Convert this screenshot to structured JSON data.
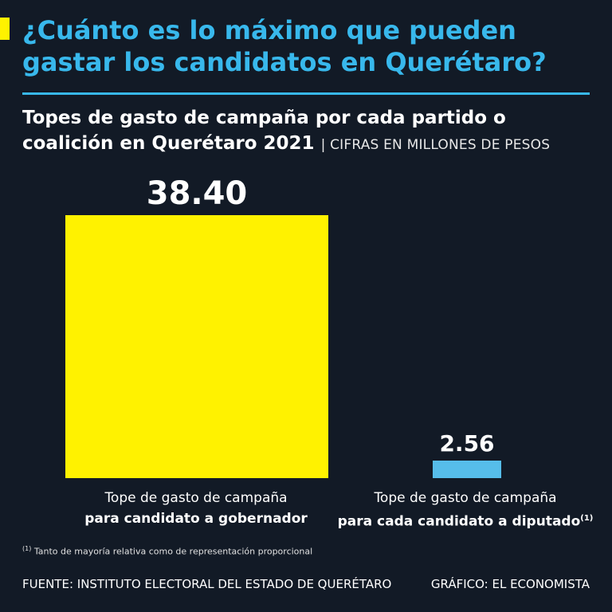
{
  "headline": "¿Cuánto es lo máximo que pueden gastar los candidatos en Querétaro?",
  "subtitle": "Topes de gasto de campaña por cada partido o coalición en Querétaro 2021",
  "subtitle_note": "| CIFRAS EN MILLONES DE PESOS",
  "footnote_marker": "(1)",
  "footnote": "Tanto de mayoría relativa como de representación proporcional",
  "source": "FUENTE: INSTITUTO ELECTORAL DEL ESTADO DE QUERÉTARO",
  "credit": "GRÁFICO: EL ECONOMISTA",
  "colors": {
    "background": "#121a26",
    "accent_yellow": "#fff200",
    "accent_blue": "#38b8ec",
    "bar_gobernador": "#fff200",
    "bar_diputado": "#56bdea"
  },
  "chart_data": {
    "type": "bar",
    "categories": [
      {
        "line1": "Tope de gasto de campaña",
        "line2": "para candidato a gobernador",
        "marker": ""
      },
      {
        "line1": "Tope de gasto de campaña",
        "line2": "para cada candidato a diputado",
        "marker": "(1)"
      }
    ],
    "values": [
      38.4,
      2.56
    ],
    "value_labels": [
      "38.40",
      "2.56"
    ],
    "bar_colors": [
      "#fff200",
      "#56bdea"
    ],
    "ylim": [
      0,
      38.4
    ],
    "grid": false,
    "legend": "none"
  }
}
